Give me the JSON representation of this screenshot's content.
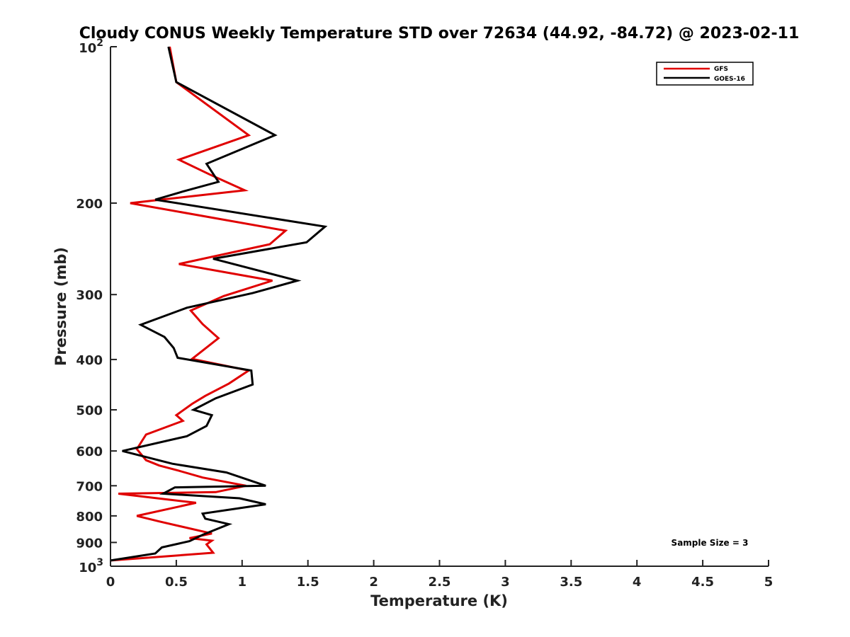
{
  "chart_data": {
    "type": "line",
    "title": "Cloudy CONUS Weekly Temperature STD over 72634 (44.92, -84.72) @ 2023-02-11",
    "xlabel": "Temperature (K)",
    "ylabel": "Pressure (mb)",
    "xlim": [
      0,
      5
    ],
    "ylim": [
      100,
      1000
    ],
    "y_scale": "log",
    "y_reversed": true,
    "x_ticks": [
      0,
      0.5,
      1,
      1.5,
      2,
      2.5,
      3,
      3.5,
      4,
      4.5,
      5
    ],
    "x_tick_labels": [
      "0",
      "0.5",
      "1",
      "1.5",
      "2",
      "2.5",
      "3",
      "3.5",
      "4",
      "4.5",
      "5"
    ],
    "y_ticks": [
      200,
      300,
      400,
      500,
      600,
      700,
      800,
      900
    ],
    "y_tick_labels": [
      "200",
      "300",
      "400",
      "500",
      "600",
      "700",
      "800",
      "900"
    ],
    "y_decade_labels": [
      {
        "value": 100,
        "base": "10",
        "exp": "2"
      },
      {
        "value": 1000,
        "base": "10",
        "exp": "3"
      }
    ],
    "grid": false,
    "legend_position": "top-right",
    "annotation": "Sample Size = 3",
    "series": [
      {
        "name": "GFS",
        "color": "#e00000",
        "x": [
          0.45,
          0.5,
          1.05,
          0.52,
          0.75,
          1.02,
          0.15,
          1.33,
          1.21,
          0.52,
          1.23,
          0.86,
          0.61,
          0.7,
          0.82,
          0.62,
          1.05,
          0.9,
          0.72,
          0.62,
          0.5,
          0.55,
          0.27,
          0.2,
          0.27,
          0.37,
          0.52,
          0.7,
          1.03,
          0.8,
          0.06,
          0.65,
          0.2,
          0.37,
          0.77,
          0.6,
          0.77,
          0.73,
          0.78,
          0.0
        ],
        "y": [
          100,
          117,
          148,
          165,
          176,
          189,
          200,
          226,
          240,
          262,
          282,
          302,
          322,
          342,
          364,
          399,
          420,
          445,
          470,
          487,
          512,
          525,
          558,
          595,
          625,
          640,
          655,
          675,
          700,
          720,
          725,
          755,
          800,
          820,
          865,
          883,
          893,
          908,
          942,
          975
        ]
      },
      {
        "name": "GOES-16",
        "color": "#000000",
        "x": [
          0.44,
          0.5,
          1.25,
          0.73,
          0.82,
          0.55,
          0.34,
          1.63,
          1.49,
          0.78,
          1.42,
          1.08,
          0.58,
          0.23,
          0.41,
          0.48,
          0.51,
          1.07,
          1.08,
          0.8,
          0.63,
          0.77,
          0.73,
          0.58,
          0.09,
          0.47,
          0.88,
          1.18,
          0.49,
          0.4,
          0.98,
          1.18,
          0.7,
          0.72,
          0.9,
          0.7,
          0.6,
          0.39,
          0.34,
          0.0
        ],
        "y": [
          100,
          117,
          148,
          168,
          182,
          190,
          197,
          222,
          238,
          256,
          282,
          298,
          318,
          343,
          362,
          380,
          397,
          420,
          447,
          475,
          500,
          512,
          537,
          562,
          600,
          635,
          660,
          700,
          705,
          725,
          740,
          760,
          792,
          810,
          830,
          870,
          895,
          920,
          945,
          975
        ]
      }
    ]
  }
}
